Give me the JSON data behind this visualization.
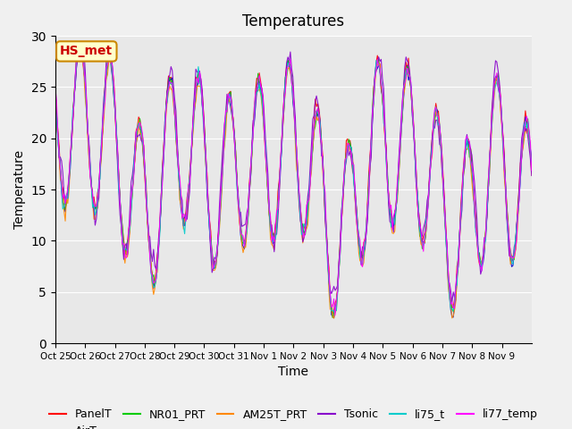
{
  "title": "Temperatures",
  "xlabel": "Time",
  "ylabel": "Temperature",
  "ylim": [
    0,
    30
  ],
  "yticks": [
    0,
    5,
    10,
    15,
    20,
    25,
    30
  ],
  "xtick_labels": [
    "Oct 25",
    "Oct 26",
    "Oct 27",
    "Oct 28",
    "Oct 29",
    "Oct 30",
    "Oct 31",
    "Nov 1",
    "Nov 2",
    "Nov 3",
    "Nov 4",
    "Nov 5",
    "Nov 6",
    "Nov 7",
    "Nov 8",
    "Nov 9"
  ],
  "series_colors": {
    "PanelT": "#ff0000",
    "AirT": "#0000cc",
    "NR01_PRT": "#00cc00",
    "AM25T_PRT": "#ff8800",
    "Tsonic": "#8800cc",
    "li75_t": "#00cccc",
    "li77_temp": "#ff00ff"
  },
  "annotation_text": "HS_met",
  "annotation_color": "#cc0000",
  "annotation_bg": "#ffffcc",
  "annotation_border": "#cc8800",
  "plot_bg": "#e8e8e8",
  "fig_bg": "#f0f0f0",
  "title_fontsize": 12,
  "axis_fontsize": 10,
  "legend_fontsize": 9
}
